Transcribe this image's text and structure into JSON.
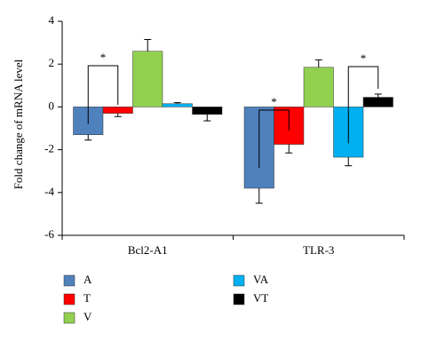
{
  "chart_data": {
    "type": "bar",
    "y_label": "Fold change of mRNA level",
    "categories": [
      "Bcl2-A1",
      "TLR-3"
    ],
    "series": [
      {
        "name": "A",
        "color": "#4f81bd",
        "values": [
          -1.3,
          -3.8
        ],
        "errors": [
          0.25,
          0.7
        ]
      },
      {
        "name": "T",
        "color": "#ff0000",
        "values": [
          -0.3,
          -1.75
        ],
        "errors": [
          0.15,
          0.4
        ]
      },
      {
        "name": "V",
        "color": "#92d050",
        "values": [
          2.6,
          1.85
        ],
        "errors": [
          0.55,
          0.35
        ]
      },
      {
        "name": "VA",
        "color": "#00b0f0",
        "values": [
          0.15,
          -2.35
        ],
        "errors": [
          0.05,
          0.4
        ]
      },
      {
        "name": "VT",
        "color": "#000000",
        "values": [
          -0.35,
          0.45
        ],
        "errors": [
          0.3,
          0.15
        ]
      }
    ],
    "annotations": [
      "*",
      "*",
      "*"
    ],
    "ylim": [
      -6,
      4
    ],
    "yticks": [
      -6,
      -4,
      -2,
      0,
      2,
      4
    ]
  }
}
